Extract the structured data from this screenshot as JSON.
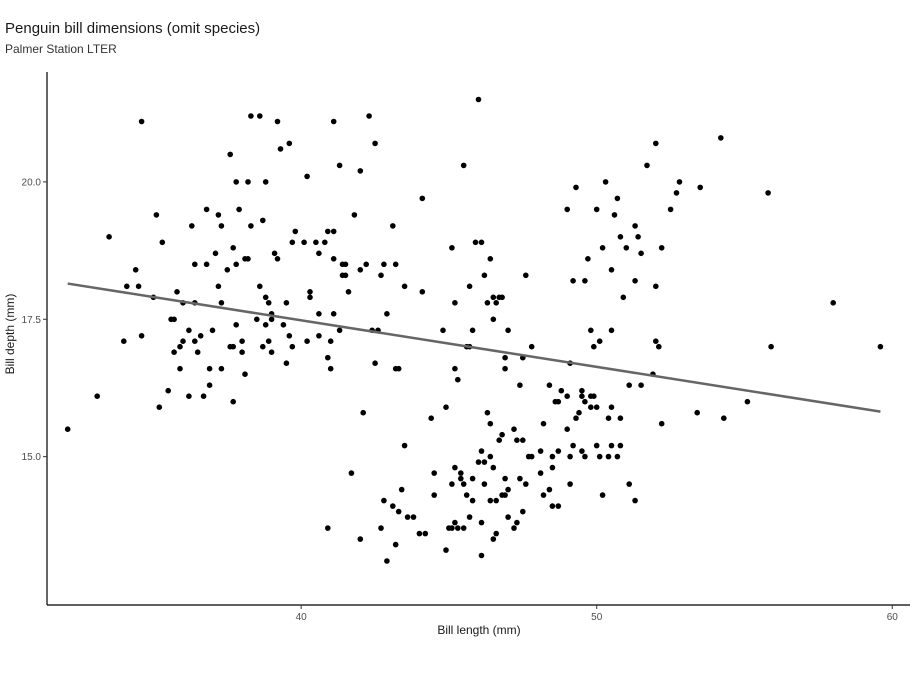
{
  "chart_data": {
    "type": "scatter",
    "title": "Penguin bill dimensions (omit species)",
    "subtitle": "Palmer Station LTER",
    "xlabel": "Bill length (mm)",
    "ylabel": "Bill depth (mm)",
    "xlim": [
      31.4,
      60.6
    ],
    "ylim": [
      12.3,
      22.0
    ],
    "xticks": [
      {
        "value": 40,
        "label": "40"
      },
      {
        "value": 50,
        "label": "50"
      },
      {
        "value": 60,
        "label": "60"
      }
    ],
    "yticks": [
      {
        "value": 15,
        "label": "15.0"
      },
      {
        "value": 17.5,
        "label": "17.5"
      },
      {
        "value": 20,
        "label": "20.0"
      }
    ],
    "grid": false,
    "trend_line": {
      "x": [
        32.1,
        59.6
      ],
      "y": [
        18.15,
        15.82
      ]
    },
    "colors": {
      "points": "#000000",
      "trend_line": "#666666",
      "axis": "#000000"
    },
    "points": [
      [
        32.1,
        15.5
      ],
      [
        33.1,
        16.1
      ],
      [
        33.5,
        19.0
      ],
      [
        34.0,
        17.1
      ],
      [
        34.1,
        18.1
      ],
      [
        34.4,
        18.4
      ],
      [
        34.5,
        18.1
      ],
      [
        34.6,
        17.2
      ],
      [
        34.6,
        21.1
      ],
      [
        35.0,
        17.9
      ],
      [
        35.1,
        19.4
      ],
      [
        35.2,
        15.9
      ],
      [
        35.3,
        18.9
      ],
      [
        35.5,
        16.2
      ],
      [
        35.6,
        17.5
      ],
      [
        35.7,
        17.5
      ],
      [
        35.8,
        18.0
      ],
      [
        35.9,
        17.0
      ],
      [
        35.9,
        16.6
      ],
      [
        36.0,
        17.1
      ],
      [
        36.2,
        17.3
      ],
      [
        36.3,
        19.2
      ],
      [
        36.4,
        17.1
      ],
      [
        36.4,
        18.5
      ],
      [
        36.4,
        17.8
      ],
      [
        36.5,
        16.9
      ],
      [
        36.6,
        17.2
      ],
      [
        36.7,
        16.1
      ],
      [
        36.8,
        19.5
      ],
      [
        36.8,
        18.5
      ],
      [
        36.9,
        16.6
      ],
      [
        37.0,
        17.3
      ],
      [
        37.1,
        18.7
      ],
      [
        37.2,
        18.1
      ],
      [
        37.2,
        19.4
      ],
      [
        37.3,
        19.2
      ],
      [
        37.5,
        18.4
      ],
      [
        37.6,
        20.5
      ],
      [
        37.7,
        18.8
      ],
      [
        37.7,
        17.0
      ],
      [
        37.8,
        18.5
      ],
      [
        37.8,
        17.4
      ],
      [
        37.9,
        19.5
      ],
      [
        38.0,
        17.1
      ],
      [
        38.0,
        16.9
      ],
      [
        38.1,
        18.6
      ],
      [
        38.2,
        18.6
      ],
      [
        38.2,
        20.0
      ],
      [
        38.3,
        19.2
      ],
      [
        38.5,
        17.5
      ],
      [
        38.6,
        18.1
      ],
      [
        38.7,
        19.3
      ],
      [
        38.8,
        17.4
      ],
      [
        38.8,
        20.0
      ],
      [
        38.9,
        17.1
      ],
      [
        38.9,
        17.8
      ],
      [
        39.0,
        17.6
      ],
      [
        39.0,
        16.9
      ],
      [
        39.1,
        18.7
      ],
      [
        39.2,
        18.6
      ],
      [
        39.3,
        20.6
      ],
      [
        39.5,
        16.7
      ],
      [
        39.6,
        17.2
      ],
      [
        39.7,
        18.9
      ],
      [
        39.8,
        19.1
      ],
      [
        40.1,
        18.9
      ],
      [
        40.3,
        18.0
      ],
      [
        40.5,
        18.9
      ],
      [
        40.6,
        17.2
      ],
      [
        40.8,
        18.9
      ],
      [
        40.9,
        16.8
      ],
      [
        41.0,
        17.1
      ],
      [
        41.1,
        19.1
      ],
      [
        41.1,
        18.6
      ],
      [
        41.3,
        20.3
      ],
      [
        41.4,
        18.5
      ],
      [
        41.5,
        18.3
      ],
      [
        41.6,
        18.0
      ],
      [
        41.8,
        19.4
      ],
      [
        42.0,
        20.2
      ],
      [
        42.2,
        18.5
      ],
      [
        42.3,
        21.2
      ],
      [
        42.5,
        16.7
      ],
      [
        42.7,
        18.3
      ],
      [
        42.8,
        18.5
      ],
      [
        42.9,
        17.6
      ],
      [
        43.1,
        19.2
      ],
      [
        43.2,
        18.5
      ],
      [
        38.3,
        21.2
      ],
      [
        38.6,
        21.2
      ],
      [
        39.2,
        21.1
      ],
      [
        39.6,
        20.7
      ],
      [
        41.1,
        21.1
      ],
      [
        42.5,
        20.7
      ],
      [
        40.2,
        20.1
      ],
      [
        37.8,
        20.0
      ],
      [
        37.7,
        16.0
      ],
      [
        38.1,
        16.5
      ],
      [
        37.3,
        16.6
      ],
      [
        36.9,
        16.3
      ],
      [
        38.7,
        17.0
      ],
      [
        39.4,
        17.4
      ],
      [
        40.6,
        17.6
      ],
      [
        41.3,
        17.3
      ],
      [
        41.0,
        16.6
      ],
      [
        39.7,
        17.0
      ],
      [
        38.8,
        17.9
      ],
      [
        40.3,
        17.9
      ],
      [
        41.4,
        18.3
      ],
      [
        36.0,
        17.8
      ],
      [
        35.7,
        16.9
      ],
      [
        36.2,
        16.1
      ],
      [
        37.3,
        17.8
      ],
      [
        40.9,
        19.1
      ],
      [
        41.1,
        17.6
      ],
      [
        41.5,
        18.5
      ],
      [
        42.0,
        18.4
      ],
      [
        40.6,
        18.7
      ],
      [
        39.0,
        17.5
      ],
      [
        40.2,
        17.1
      ],
      [
        37.6,
        17.0
      ],
      [
        39.5,
        17.8
      ],
      [
        43.2,
        16.6
      ],
      [
        43.5,
        18.1
      ],
      [
        44.1,
        19.7
      ],
      [
        44.1,
        18.0
      ],
      [
        45.1,
        18.8
      ],
      [
        45.5,
        20.3
      ],
      [
        45.7,
        18.1
      ],
      [
        45.9,
        18.9
      ],
      [
        46.1,
        18.9
      ],
      [
        46.0,
        21.5
      ],
      [
        46.3,
        17.8
      ],
      [
        46.4,
        18.6
      ],
      [
        46.5,
        17.9
      ],
      [
        46.6,
        17.8
      ],
      [
        46.7,
        17.9
      ],
      [
        46.8,
        17.9
      ],
      [
        46.9,
        16.8
      ],
      [
        47.0,
        17.3
      ],
      [
        47.5,
        16.8
      ],
      [
        47.6,
        18.3
      ],
      [
        49.0,
        19.5
      ],
      [
        49.2,
        18.2
      ],
      [
        49.3,
        19.9
      ],
      [
        49.6,
        18.2
      ],
      [
        49.7,
        18.6
      ],
      [
        49.8,
        17.3
      ],
      [
        50.0,
        19.5
      ],
      [
        50.2,
        18.8
      ],
      [
        50.3,
        20.0
      ],
      [
        50.5,
        18.4
      ],
      [
        50.6,
        19.4
      ],
      [
        50.7,
        19.7
      ],
      [
        50.8,
        19.0
      ],
      [
        50.9,
        17.9
      ],
      [
        51.0,
        18.8
      ],
      [
        51.3,
        19.2
      ],
      [
        51.4,
        19.0
      ],
      [
        51.5,
        18.7
      ],
      [
        51.7,
        20.3
      ],
      [
        52.0,
        18.1
      ],
      [
        52.0,
        20.7
      ],
      [
        52.2,
        18.8
      ],
      [
        52.5,
        19.5
      ],
      [
        52.7,
        19.8
      ],
      [
        52.8,
        20.0
      ],
      [
        53.5,
        19.9
      ],
      [
        54.2,
        20.8
      ],
      [
        55.8,
        19.8
      ],
      [
        45.2,
        17.8
      ],
      [
        45.6,
        17.0
      ],
      [
        45.8,
        17.3
      ],
      [
        46.2,
        18.3
      ],
      [
        46.5,
        17.5
      ],
      [
        47.8,
        17.0
      ],
      [
        49.9,
        17.0
      ],
      [
        50.5,
        17.3
      ],
      [
        51.3,
        18.2
      ],
      [
        42.6,
        17.3
      ],
      [
        42.4,
        17.3
      ],
      [
        45.7,
        17.0
      ],
      [
        49.1,
        16.7
      ],
      [
        50.1,
        17.1
      ],
      [
        52.1,
        17.0
      ],
      [
        58.0,
        17.8
      ],
      [
        55.9,
        17.0
      ],
      [
        59.6,
        17.0
      ],
      [
        51.9,
        16.5
      ],
      [
        52.0,
        17.1
      ],
      [
        44.8,
        17.3
      ],
      [
        43.3,
        16.6
      ],
      [
        46.9,
        16.6
      ],
      [
        42.1,
        15.8
      ],
      [
        40.9,
        13.7
      ],
      [
        41.7,
        14.7
      ],
      [
        42.0,
        13.5
      ],
      [
        42.7,
        13.7
      ],
      [
        42.8,
        14.2
      ],
      [
        42.9,
        13.1
      ],
      [
        43.2,
        13.4
      ],
      [
        43.3,
        14.0
      ],
      [
        43.4,
        14.4
      ],
      [
        43.5,
        15.2
      ],
      [
        43.6,
        13.9
      ],
      [
        43.8,
        13.9
      ],
      [
        44.0,
        13.6
      ],
      [
        44.4,
        15.7
      ],
      [
        44.5,
        14.3
      ],
      [
        44.5,
        14.7
      ],
      [
        44.9,
        13.3
      ],
      [
        45.0,
        13.7
      ],
      [
        45.1,
        14.5
      ],
      [
        45.2,
        13.8
      ],
      [
        45.2,
        14.8
      ],
      [
        45.3,
        13.7
      ],
      [
        45.4,
        14.6
      ],
      [
        45.5,
        13.7
      ],
      [
        45.5,
        14.5
      ],
      [
        45.7,
        13.9
      ],
      [
        45.8,
        14.6
      ],
      [
        45.8,
        14.2
      ],
      [
        46.1,
        13.2
      ],
      [
        46.1,
        15.1
      ],
      [
        46.2,
        14.5
      ],
      [
        46.2,
        14.9
      ],
      [
        46.3,
        15.8
      ],
      [
        46.4,
        15.6
      ],
      [
        46.4,
        15.0
      ],
      [
        46.5,
        13.5
      ],
      [
        46.5,
        14.8
      ],
      [
        46.6,
        14.2
      ],
      [
        46.7,
        15.3
      ],
      [
        46.8,
        14.3
      ],
      [
        46.8,
        15.4
      ],
      [
        46.9,
        14.6
      ],
      [
        47.0,
        14.4
      ],
      [
        47.2,
        13.7
      ],
      [
        47.2,
        15.5
      ],
      [
        47.3,
        13.8
      ],
      [
        47.4,
        14.6
      ],
      [
        47.5,
        14.0
      ],
      [
        47.6,
        14.5
      ],
      [
        47.7,
        15.0
      ],
      [
        47.8,
        15.0
      ],
      [
        48.1,
        14.7
      ],
      [
        48.1,
        15.1
      ],
      [
        48.2,
        14.3
      ],
      [
        48.2,
        15.6
      ],
      [
        48.4,
        14.4
      ],
      [
        48.4,
        16.3
      ],
      [
        48.5,
        14.1
      ],
      [
        48.5,
        15.0
      ],
      [
        48.6,
        16.0
      ],
      [
        48.7,
        14.1
      ],
      [
        48.7,
        15.1
      ],
      [
        48.8,
        16.2
      ],
      [
        49.0,
        16.1
      ],
      [
        49.1,
        14.5
      ],
      [
        49.1,
        15.0
      ],
      [
        49.2,
        15.2
      ],
      [
        49.3,
        15.7
      ],
      [
        49.4,
        15.8
      ],
      [
        49.5,
        16.1
      ],
      [
        49.5,
        16.2
      ],
      [
        49.6,
        15.0
      ],
      [
        49.6,
        16.0
      ],
      [
        49.8,
        15.9
      ],
      [
        49.8,
        16.1
      ],
      [
        49.9,
        16.1
      ],
      [
        50.0,
        15.2
      ],
      [
        50.0,
        15.9
      ],
      [
        50.1,
        15.0
      ],
      [
        50.2,
        14.3
      ],
      [
        50.4,
        15.0
      ],
      [
        50.4,
        15.7
      ],
      [
        50.5,
        15.2
      ],
      [
        50.5,
        15.9
      ],
      [
        50.7,
        15.0
      ],
      [
        50.8,
        15.7
      ],
      [
        51.1,
        14.5
      ],
      [
        51.1,
        16.3
      ],
      [
        51.3,
        14.2
      ],
      [
        51.5,
        16.3
      ],
      [
        52.2,
        15.6
      ],
      [
        53.4,
        15.8
      ],
      [
        54.3,
        15.7
      ],
      [
        55.1,
        16.0
      ],
      [
        45.3,
        16.4
      ],
      [
        45.2,
        16.6
      ],
      [
        44.9,
        15.9
      ],
      [
        45.4,
        14.7
      ],
      [
        46.0,
        14.9
      ],
      [
        47.3,
        15.3
      ],
      [
        46.1,
        13.8
      ],
      [
        45.6,
        14.3
      ],
      [
        46.4,
        14.2
      ],
      [
        47.5,
        15.3
      ],
      [
        48.7,
        16.0
      ],
      [
        49.5,
        15.1
      ],
      [
        50.8,
        15.2
      ],
      [
        48.5,
        14.8
      ],
      [
        46.9,
        14.3
      ],
      [
        47.0,
        13.9
      ],
      [
        43.1,
        14.1
      ],
      [
        44.2,
        13.6
      ],
      [
        45.1,
        13.7
      ],
      [
        46.6,
        13.6
      ],
      [
        47.4,
        16.3
      ],
      [
        49.0,
        15.5
      ]
    ]
  }
}
